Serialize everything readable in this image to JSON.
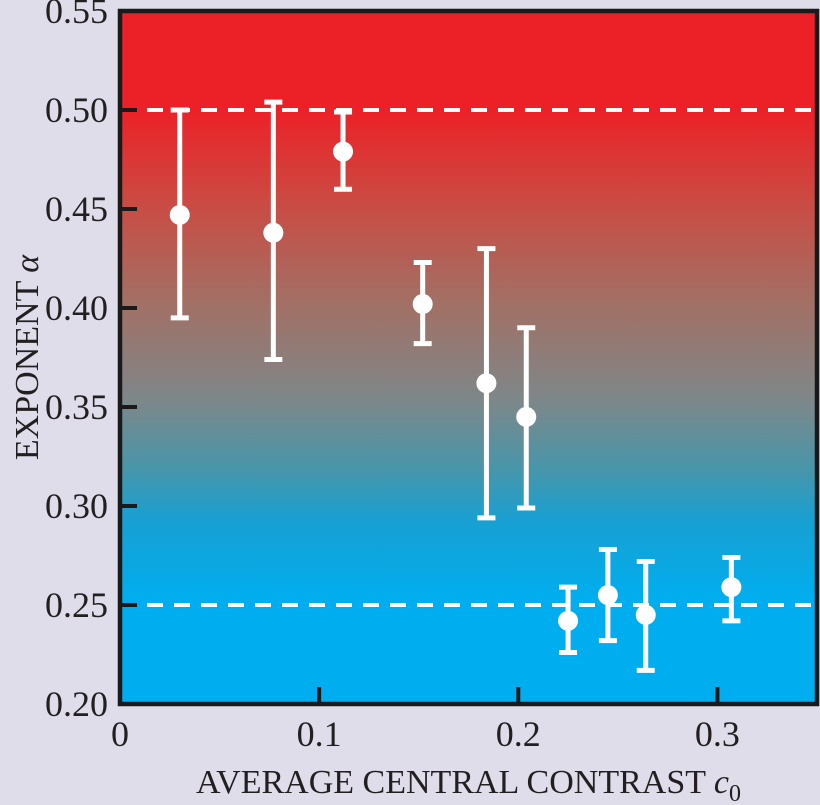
{
  "figure": {
    "background_color": "#DEDDE9",
    "frame_color": "#1A1A1A",
    "text_color": "#231F20",
    "marker_color": "#FFFFFF",
    "reference_line_color": "#FFFFFF"
  },
  "chart_data": {
    "type": "scatter",
    "title": "",
    "xlabel_main": "AVERAGE CENTRAL CONTRAST ",
    "xlabel_var": "c",
    "xlabel_sub": "0",
    "ylabel_main": "EXPONENT ",
    "ylabel_var": "α",
    "xlim": [
      0,
      0.35
    ],
    "ylim": [
      0.2,
      0.55
    ],
    "x_ticks": [
      0,
      0.1,
      0.2,
      0.3
    ],
    "x_tick_labels": [
      "0",
      "0.1",
      "0.2",
      "0.3"
    ],
    "y_ticks": [
      0.2,
      0.25,
      0.3,
      0.35,
      0.4,
      0.45,
      0.5,
      0.55
    ],
    "y_tick_labels": [
      "0.20",
      "0.25",
      "0.30",
      "0.35",
      "0.40",
      "0.45",
      "0.50",
      "0.55"
    ],
    "reference_lines": [
      0.5,
      0.25
    ],
    "grid": false,
    "legend": null,
    "points": [
      {
        "x": 0.03,
        "y": 0.447,
        "y_upper": 0.5,
        "y_lower": 0.395
      },
      {
        "x": 0.077,
        "y": 0.438,
        "y_upper": 0.504,
        "y_lower": 0.374
      },
      {
        "x": 0.112,
        "y": 0.479,
        "y_upper": 0.499,
        "y_lower": 0.46
      },
      {
        "x": 0.152,
        "y": 0.402,
        "y_upper": 0.423,
        "y_lower": 0.382
      },
      {
        "x": 0.184,
        "y": 0.362,
        "y_upper": 0.43,
        "y_lower": 0.294
      },
      {
        "x": 0.204,
        "y": 0.345,
        "y_upper": 0.39,
        "y_lower": 0.299
      },
      {
        "x": 0.225,
        "y": 0.242,
        "y_upper": 0.259,
        "y_lower": 0.226
      },
      {
        "x": 0.245,
        "y": 0.255,
        "y_upper": 0.278,
        "y_lower": 0.232
      },
      {
        "x": 0.264,
        "y": 0.245,
        "y_upper": 0.272,
        "y_lower": 0.217
      },
      {
        "x": 0.307,
        "y": 0.259,
        "y_upper": 0.274,
        "y_lower": 0.242
      }
    ],
    "background_gradient": [
      {
        "offset": 0.0,
        "color": "#EC2127"
      },
      {
        "offset": 0.143,
        "color": "#EC2127"
      },
      {
        "offset": 0.273,
        "color": "#CB4A42"
      },
      {
        "offset": 0.417,
        "color": "#A36F64"
      },
      {
        "offset": 0.561,
        "color": "#7E8789"
      },
      {
        "offset": 0.662,
        "color": "#4796AA"
      },
      {
        "offset": 0.734,
        "color": "#18A0D2"
      },
      {
        "offset": 0.85,
        "color": "#00AEEF"
      },
      {
        "offset": 1.0,
        "color": "#00AEEF"
      }
    ]
  }
}
